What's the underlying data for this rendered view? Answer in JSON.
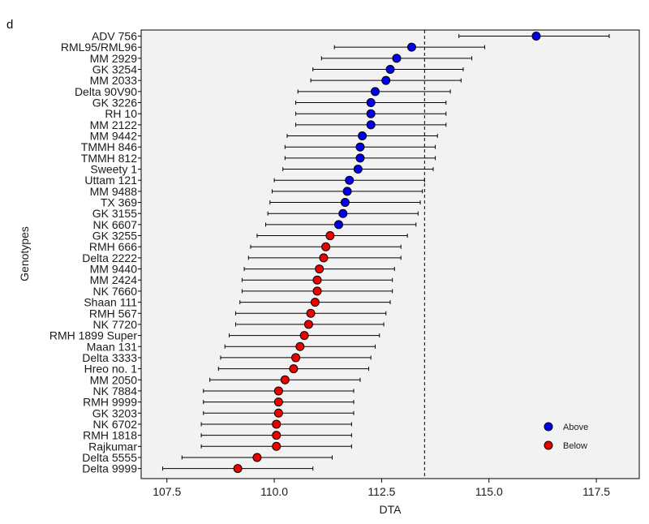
{
  "chart_data": {
    "type": "scatter",
    "panel_tag": "d",
    "title": "",
    "xlabel": "DTA",
    "ylabel": "Genotypes",
    "xlim": [
      106.9,
      118.5
    ],
    "x_ticks": [
      107.5,
      110.0,
      112.5,
      115.0,
      117.5
    ],
    "x_tick_labels": [
      "107.5",
      "110.0",
      "112.5",
      "115.0",
      "117.5"
    ],
    "reference_line": 113.5,
    "grid": false,
    "legend_position": "bottom-right",
    "legend": [
      {
        "label": "Above",
        "color": "#0000ee"
      },
      {
        "label": "Below",
        "color": "#ee0000"
      }
    ],
    "points": [
      {
        "genotype": "ADV 756",
        "value": 116.1,
        "low": 114.3,
        "high": 117.8,
        "group": "Above"
      },
      {
        "genotype": "RML95/RML96",
        "value": 113.2,
        "low": 111.4,
        "high": 114.9,
        "group": "Above"
      },
      {
        "genotype": "MM 2929",
        "value": 112.85,
        "low": 111.1,
        "high": 114.6,
        "group": "Above"
      },
      {
        "genotype": "GK 3254",
        "value": 112.7,
        "low": 110.9,
        "high": 114.4,
        "group": "Above"
      },
      {
        "genotype": "MM 2033",
        "value": 112.6,
        "low": 110.85,
        "high": 114.35,
        "group": "Above"
      },
      {
        "genotype": "Delta 90V90",
        "value": 112.35,
        "low": 110.55,
        "high": 114.1,
        "group": "Above"
      },
      {
        "genotype": "GK 3226",
        "value": 112.25,
        "low": 110.5,
        "high": 114.0,
        "group": "Above"
      },
      {
        "genotype": "RH 10",
        "value": 112.25,
        "low": 110.5,
        "high": 114.0,
        "group": "Above"
      },
      {
        "genotype": "MM 2122",
        "value": 112.25,
        "low": 110.5,
        "high": 114.0,
        "group": "Above"
      },
      {
        "genotype": "MM 9442",
        "value": 112.05,
        "low": 110.3,
        "high": 113.8,
        "group": "Above"
      },
      {
        "genotype": "TMMH 846",
        "value": 112.0,
        "low": 110.25,
        "high": 113.75,
        "group": "Above"
      },
      {
        "genotype": "TMMH 812",
        "value": 112.0,
        "low": 110.25,
        "high": 113.75,
        "group": "Above"
      },
      {
        "genotype": "Sweety 1",
        "value": 111.95,
        "low": 110.2,
        "high": 113.7,
        "group": "Above"
      },
      {
        "genotype": "Uttam 121",
        "value": 111.75,
        "low": 110.0,
        "high": 113.5,
        "group": "Above"
      },
      {
        "genotype": "MM 9488",
        "value": 111.7,
        "low": 109.95,
        "high": 113.45,
        "group": "Above"
      },
      {
        "genotype": "TX 369",
        "value": 111.65,
        "low": 109.9,
        "high": 113.4,
        "group": "Above"
      },
      {
        "genotype": "GK 3155",
        "value": 111.6,
        "low": 109.85,
        "high": 113.35,
        "group": "Above"
      },
      {
        "genotype": "NK 6607",
        "value": 111.5,
        "low": 109.8,
        "high": 113.3,
        "group": "Above"
      },
      {
        "genotype": "GK 3255",
        "value": 111.3,
        "low": 109.6,
        "high": 113.1,
        "group": "Below"
      },
      {
        "genotype": "RMH 666",
        "value": 111.2,
        "low": 109.45,
        "high": 112.95,
        "group": "Below"
      },
      {
        "genotype": "Delta 2222",
        "value": 111.15,
        "low": 109.4,
        "high": 112.95,
        "group": "Below"
      },
      {
        "genotype": "MM 9440",
        "value": 111.05,
        "low": 109.3,
        "high": 112.8,
        "group": "Below"
      },
      {
        "genotype": "MM 2424",
        "value": 111.0,
        "low": 109.25,
        "high": 112.75,
        "group": "Below"
      },
      {
        "genotype": "NK 7660",
        "value": 111.0,
        "low": 109.25,
        "high": 112.75,
        "group": "Below"
      },
      {
        "genotype": "Shaan 111",
        "value": 110.95,
        "low": 109.2,
        "high": 112.7,
        "group": "Below"
      },
      {
        "genotype": "RMH 567",
        "value": 110.85,
        "low": 109.1,
        "high": 112.6,
        "group": "Below"
      },
      {
        "genotype": "NK 7720",
        "value": 110.8,
        "low": 109.1,
        "high": 112.55,
        "group": "Below"
      },
      {
        "genotype": "RMH 1899 Super",
        "value": 110.7,
        "low": 108.95,
        "high": 112.45,
        "group": "Below"
      },
      {
        "genotype": "Maan 131",
        "value": 110.6,
        "low": 108.85,
        "high": 112.35,
        "group": "Below"
      },
      {
        "genotype": "Delta 3333",
        "value": 110.5,
        "low": 108.75,
        "high": 112.25,
        "group": "Below"
      },
      {
        "genotype": "Hreo no. 1",
        "value": 110.45,
        "low": 108.7,
        "high": 112.2,
        "group": "Below"
      },
      {
        "genotype": "MM 2050",
        "value": 110.25,
        "low": 108.5,
        "high": 112.0,
        "group": "Below"
      },
      {
        "genotype": "NK 7884",
        "value": 110.1,
        "low": 108.35,
        "high": 111.85,
        "group": "Below"
      },
      {
        "genotype": "RMH 9999",
        "value": 110.1,
        "low": 108.35,
        "high": 111.85,
        "group": "Below"
      },
      {
        "genotype": "GK 3203",
        "value": 110.1,
        "low": 108.35,
        "high": 111.85,
        "group": "Below"
      },
      {
        "genotype": "NK 6702",
        "value": 110.05,
        "low": 108.3,
        "high": 111.8,
        "group": "Below"
      },
      {
        "genotype": "RMH 1818",
        "value": 110.05,
        "low": 108.3,
        "high": 111.8,
        "group": "Below"
      },
      {
        "genotype": "Rajkumar",
        "value": 110.05,
        "low": 108.3,
        "high": 111.8,
        "group": "Below"
      },
      {
        "genotype": "Delta 5555",
        "value": 109.6,
        "low": 107.85,
        "high": 111.35,
        "group": "Below"
      },
      {
        "genotype": "Delta 9999",
        "value": 109.15,
        "low": 107.4,
        "high": 110.9,
        "group": "Below"
      }
    ]
  }
}
